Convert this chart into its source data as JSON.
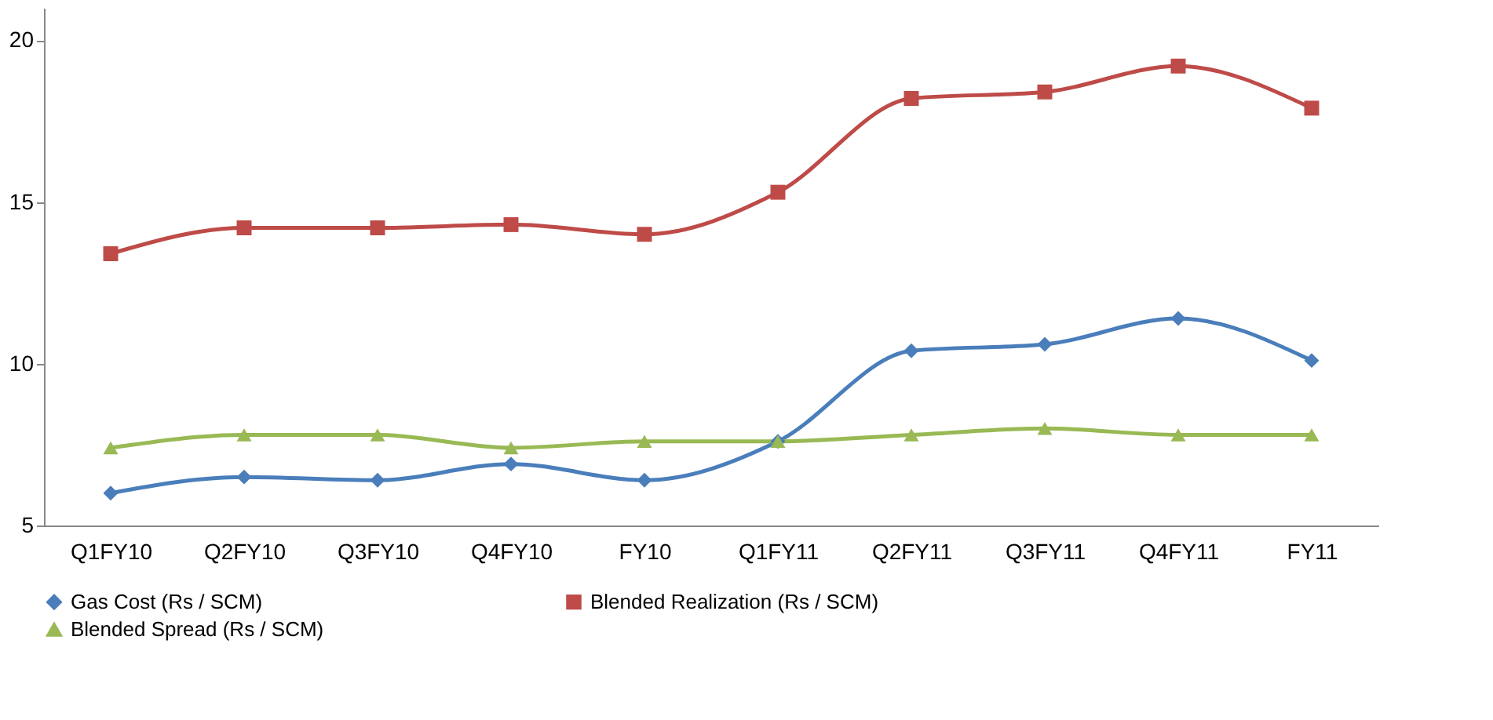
{
  "chart_data": {
    "type": "line",
    "categories": [
      "Q1FY10",
      "Q2FY10",
      "Q3FY10",
      "Q4FY10",
      "FY10",
      "Q1FY11",
      "Q2FY11",
      "Q3FY11",
      "Q4FY11",
      "FY11"
    ],
    "series": [
      {
        "name": "Gas Cost (Rs / SCM)",
        "color": "#4a7ebb",
        "marker": "diamond",
        "values": [
          6.0,
          6.5,
          6.4,
          6.9,
          6.4,
          7.6,
          10.4,
          10.6,
          11.4,
          10.1
        ]
      },
      {
        "name": "Blended Realization (Rs / SCM)",
        "color": "#be4b48",
        "marker": "square",
        "values": [
          13.4,
          14.2,
          14.2,
          14.3,
          14.0,
          15.3,
          18.2,
          18.4,
          19.2,
          17.9
        ]
      },
      {
        "name": "Blended Spread (Rs / SCM)",
        "color": "#98b954",
        "marker": "triangle",
        "values": [
          7.4,
          7.8,
          7.8,
          7.4,
          7.6,
          7.6,
          7.8,
          8.0,
          7.8,
          7.8
        ]
      }
    ],
    "ylim": [
      5,
      21
    ],
    "yticks": [
      5,
      10,
      15,
      20
    ],
    "grid": false,
    "legend": "bottom",
    "line_style": "solid"
  }
}
